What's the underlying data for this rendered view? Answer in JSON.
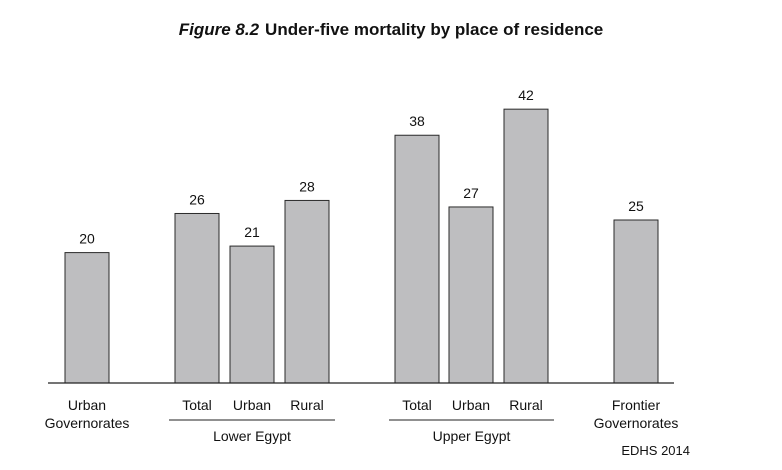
{
  "title": {
    "figure_label": "Figure 8.2",
    "text": "Under-five mortality by place of residence"
  },
  "source": "EDHS 2014",
  "colors": {
    "bar": "#bebec0",
    "bar_stroke": "#2a2a2a",
    "axis": "#222222",
    "text": "#111111"
  },
  "chart_data": {
    "type": "bar",
    "title": "Under-five mortality by place of residence",
    "xlabel": "",
    "ylabel": "",
    "ylim": [
      0,
      42
    ],
    "grid": false,
    "categories": [
      {
        "label": [
          "Urban",
          "Governorates"
        ],
        "group": null,
        "value": 20
      },
      {
        "label": [
          "Total"
        ],
        "group": "Lower Egypt",
        "value": 26
      },
      {
        "label": [
          "Urban"
        ],
        "group": "Lower Egypt",
        "value": 21
      },
      {
        "label": [
          "Rural"
        ],
        "group": "Lower Egypt",
        "value": 28
      },
      {
        "label": [
          "Total"
        ],
        "group": "Upper Egypt",
        "value": 38
      },
      {
        "label": [
          "Urban"
        ],
        "group": "Upper Egypt",
        "value": 27
      },
      {
        "label": [
          "Rural"
        ],
        "group": "Upper Egypt",
        "value": 42
      },
      {
        "label": [
          "Frontier",
          "Governorates"
        ],
        "group": null,
        "value": 25
      }
    ],
    "groups": [
      "Lower Egypt",
      "Upper Egypt"
    ]
  }
}
